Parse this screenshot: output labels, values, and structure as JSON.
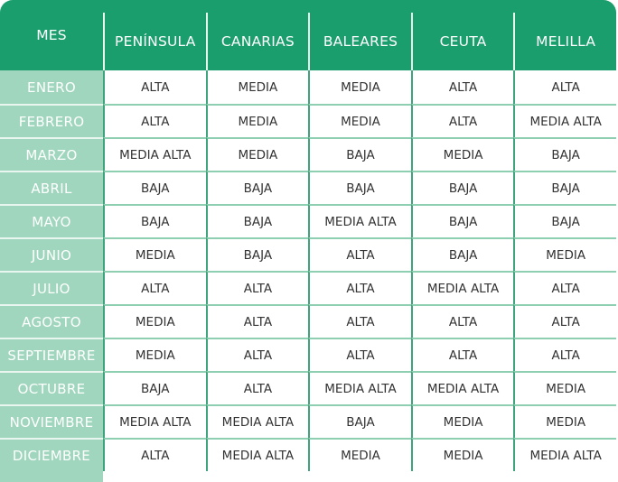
{
  "header": [
    "MES",
    "PENÍNSULA",
    "CANARIAS",
    "BALEARES",
    "CEUTA",
    "MELILLA"
  ],
  "colors": {
    "header_bg": "#1b9e6d",
    "month_bg": "#9fd6bd",
    "grid_vertical": "#3fa47c",
    "grid_horizontal": "#8fcfb1"
  },
  "rows": [
    {
      "mes": "ENERO",
      "values": [
        "ALTA",
        "MEDIA",
        "MEDIA",
        "ALTA",
        "ALTA"
      ]
    },
    {
      "mes": "FEBRERO",
      "values": [
        "ALTA",
        "MEDIA",
        "MEDIA",
        "ALTA",
        "MEDIA ALTA"
      ]
    },
    {
      "mes": "MARZO",
      "values": [
        "MEDIA ALTA",
        "MEDIA",
        "BAJA",
        "MEDIA",
        "BAJA"
      ]
    },
    {
      "mes": "ABRIL",
      "values": [
        "BAJA",
        "BAJA",
        "BAJA",
        "BAJA",
        "BAJA"
      ]
    },
    {
      "mes": "MAYO",
      "values": [
        "BAJA",
        "BAJA",
        "MEDIA ALTA",
        "BAJA",
        "BAJA"
      ]
    },
    {
      "mes": "JUNIO",
      "values": [
        "MEDIA",
        "BAJA",
        "ALTA",
        "BAJA",
        "MEDIA"
      ]
    },
    {
      "mes": "JULIO",
      "values": [
        "ALTA",
        "ALTA",
        "ALTA",
        "MEDIA ALTA",
        "ALTA"
      ]
    },
    {
      "mes": "AGOSTO",
      "values": [
        "MEDIA",
        "ALTA",
        "ALTA",
        "ALTA",
        "ALTA"
      ]
    },
    {
      "mes": "SEPTIEMBRE",
      "values": [
        "MEDIA",
        "ALTA",
        "ALTA",
        "ALTA",
        "ALTA"
      ]
    },
    {
      "mes": "OCTUBRE",
      "values": [
        "BAJA",
        "ALTA",
        "MEDIA ALTA",
        "MEDIA ALTA",
        "MEDIA"
      ]
    },
    {
      "mes": "NOVIEMBRE",
      "values": [
        "MEDIA ALTA",
        "MEDIA ALTA",
        "BAJA",
        "MEDIA",
        "MEDIA"
      ]
    },
    {
      "mes": "DICIEMBRE",
      "values": [
        "ALTA",
        "MEDIA ALTA",
        "MEDIA",
        "MEDIA",
        "MEDIA ALTA"
      ]
    }
  ]
}
